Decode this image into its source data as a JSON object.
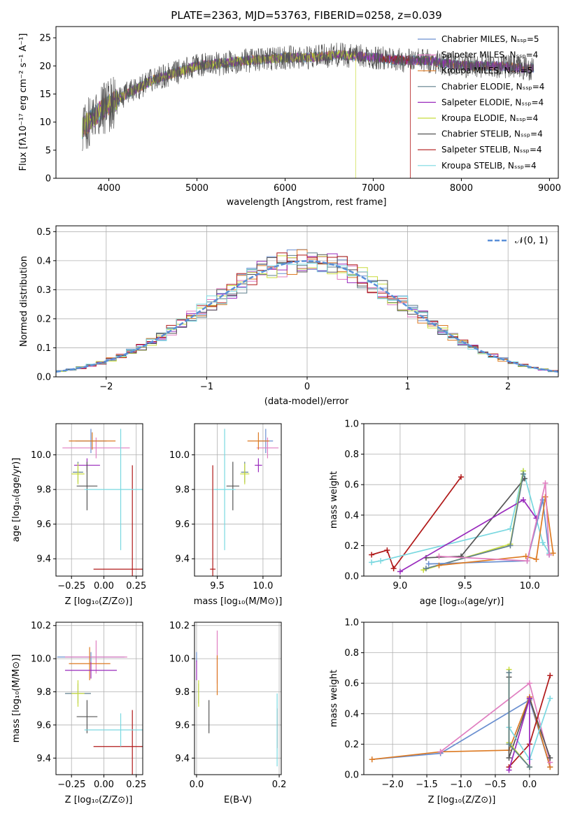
{
  "colors": {
    "chabrier_miles": "#6a8fd0",
    "salpeter_miles": "#e07ec0",
    "kroupa_miles": "#dd7a22",
    "chabrier_elodie": "#5f7f8c",
    "salpeter_elodie": "#9a2bbd",
    "kroupa_elodie": "#c8dc3c",
    "chabrier_stelib": "#555555",
    "salpeter_stelib": "#b01818",
    "kroupa_stelib": "#7ad8e0",
    "normal": "#5a8fd8",
    "grid": "#b0b0b0"
  },
  "panels": {
    "spectrum": {
      "title": "PLATE=2363, MJD=53763, FIBERID=0258, z=0.039",
      "xlabel": "wavelength [Angstrom, rest frame]",
      "ylabel": "Flux [fλ10⁻¹⁷ erg cm⁻² s⁻¹ A⁻¹]",
      "xticks": [
        "4000",
        "5000",
        "6000",
        "7000",
        "8000",
        "9000"
      ],
      "yticks": [
        "0",
        "5",
        "10",
        "15",
        "20",
        "25"
      ]
    },
    "residuals": {
      "xlabel": "(data-model)/error",
      "ylabel": "Normed distribution",
      "legend": "𝒩(0, 1)",
      "xticks": [
        "−2",
        "−1",
        "0",
        "1",
        "2"
      ],
      "yticks": [
        "0.0",
        "0.1",
        "0.2",
        "0.3",
        "0.4",
        "0.5"
      ]
    },
    "age_z": {
      "xlabel": "Z [log₁₀(Z/Z⊙)]",
      "ylabel": "age  [log₁₀(age/yr)]",
      "xticks": [
        "−0.25",
        "0.00",
        "0.25"
      ],
      "yticks": [
        "9.4",
        "9.6",
        "9.8",
        "10.0"
      ]
    },
    "age_mass": {
      "xlabel": "mass [log₁₀(M/M⊙)]",
      "xticks": [
        "9.5",
        "10.0"
      ],
      "yticks": [
        "9.4",
        "9.6",
        "9.8",
        "10.0"
      ]
    },
    "weight_age": {
      "xlabel": "age  [log₁₀(age/yr)]",
      "ylabel": "mass weight",
      "xticks": [
        "9.0",
        "9.5",
        "10.0"
      ],
      "yticks": [
        "0.0",
        "0.2",
        "0.4",
        "0.6",
        "0.8",
        "1.0"
      ]
    },
    "mass_z": {
      "xlabel": "Z [log₁₀(Z/Z⊙)]",
      "ylabel": "mass [log₁₀(M/M⊙)]",
      "xticks": [
        "−0.25",
        "0.00",
        "0.25"
      ],
      "yticks": [
        "9.4",
        "9.6",
        "9.8",
        "10.0",
        "10.2"
      ]
    },
    "mass_ebv": {
      "xlabel": "E(B-V)",
      "xticks": [
        "0.0",
        "0.2"
      ],
      "yticks": [
        "9.4",
        "9.6",
        "9.8",
        "10.0",
        "10.2"
      ]
    },
    "weight_z": {
      "xlabel": "Z [log₁₀(Z/Z⊙)]",
      "ylabel": "mass weight",
      "xticks": [
        "−2.0",
        "−1.5",
        "−1.0",
        "−0.5",
        "0.0"
      ],
      "yticks": [
        "0.0",
        "0.2",
        "0.4",
        "0.6",
        "0.8",
        "1.0"
      ]
    }
  },
  "chart_data": [
    {
      "type": "line",
      "title": "PLATE=2363, MJD=53763, FIBERID=0258, z=0.039",
      "xlabel": "wavelength [Angstrom, rest frame]",
      "ylabel": "Flux [fλ10⁻¹⁷ erg cm⁻² s⁻¹ A⁻¹]",
      "xlim": [
        3400,
        9100
      ],
      "ylim": [
        0,
        27
      ],
      "legend_position": "upper-right",
      "series": [
        {
          "name": "Chabrier MILES, Nₛₛₚ=5",
          "key": "chabrier_miles"
        },
        {
          "name": "Salpeter MILES, Nₛₛₚ=4",
          "key": "salpeter_miles"
        },
        {
          "name": "Kroupa MILES, Nₛₛₚ=5",
          "key": "kroupa_miles"
        },
        {
          "name": "Chabrier ELODIE, Nₛₛₚ=4",
          "key": "chabrier_elodie"
        },
        {
          "name": "Salpeter ELODIE, Nₛₛₚ=4",
          "key": "salpeter_elodie"
        },
        {
          "name": "Kroupa ELODIE, Nₛₛₚ=4",
          "key": "kroupa_elodie"
        },
        {
          "name": "Chabrier STELIB, Nₛₛₚ=4",
          "key": "chabrier_stelib"
        },
        {
          "name": "Salpeter STELIB, Nₛₛₚ=4",
          "key": "salpeter_stelib"
        },
        {
          "name": "Kroupa STELIB, Nₛₛₚ=4",
          "key": "kroupa_stelib"
        }
      ],
      "continuum": {
        "x": [
          3700,
          3900,
          4000,
          4200,
          4500,
          4800,
          5000,
          5300,
          5600,
          6000,
          6300,
          6600,
          7000,
          7300,
          7600,
          8000,
          8400,
          8800
        ],
        "y": [
          9,
          12,
          13,
          15,
          17.5,
          19,
          20,
          20.5,
          21,
          21.5,
          21.5,
          22,
          21.5,
          21,
          21,
          20,
          20,
          19.5
        ]
      }
    },
    {
      "type": "line",
      "xlabel": "(data-model)/error",
      "ylabel": "Normed distribution",
      "xlim": [
        -2.5,
        2.5
      ],
      "ylim": [
        0,
        0.52
      ],
      "legend": "𝒩(0, 1)",
      "legend_position": "upper-right",
      "grid": true
    },
    {
      "type": "scatter",
      "xlabel": "Z [log₁₀(Z/Z⊙)]",
      "ylabel": "age  [log₁₀(age/yr)]",
      "xlim": [
        -0.37,
        0.3
      ],
      "ylim": [
        9.3,
        10.18
      ],
      "grid": true,
      "points": [
        {
          "key": "chabrier_miles",
          "x": -0.1,
          "y": 10.08,
          "xerr": 0.12,
          "yerr": 0.07
        },
        {
          "key": "salpeter_miles",
          "x": -0.06,
          "y": 10.04,
          "xerr": 0.26,
          "yerr": 0.06
        },
        {
          "key": "kroupa_miles",
          "x": -0.09,
          "y": 10.08,
          "xerr": 0.18,
          "yerr": 0.05
        },
        {
          "key": "chabrier_elodie",
          "x": -0.2,
          "y": 9.9,
          "xerr": 0.04,
          "yerr": 0.06
        },
        {
          "key": "salpeter_elodie",
          "x": -0.13,
          "y": 9.94,
          "xerr": 0.1,
          "yerr": 0.04
        },
        {
          "key": "kroupa_elodie",
          "x": -0.2,
          "y": 9.89,
          "xerr": 0.05,
          "yerr": 0.06
        },
        {
          "key": "chabrier_stelib",
          "x": -0.13,
          "y": 9.82,
          "xerr": 0.08,
          "yerr": 0.14
        },
        {
          "key": "salpeter_stelib",
          "x": 0.22,
          "y": 9.34,
          "xerr": 0.3,
          "yerr": 0.6
        },
        {
          "key": "kroupa_stelib",
          "x": 0.13,
          "y": 9.8,
          "xerr": 0.28,
          "yerr": 0.35
        }
      ]
    },
    {
      "type": "scatter",
      "xlabel": "mass [log₁₀(M/M⊙)]",
      "xlim": [
        9.25,
        10.2
      ],
      "ylim": [
        9.3,
        10.18
      ],
      "grid": true,
      "points": [
        {
          "key": "chabrier_miles",
          "x": 10.03,
          "y": 10.08,
          "xerr": 0.08,
          "yerr": 0.07
        },
        {
          "key": "salpeter_miles",
          "x": 10.05,
          "y": 10.04,
          "xerr": 0.12,
          "yerr": 0.06
        },
        {
          "key": "kroupa_miles",
          "x": 9.95,
          "y": 10.08,
          "xerr": 0.12,
          "yerr": 0.05
        },
        {
          "key": "chabrier_elodie",
          "x": 9.8,
          "y": 9.9,
          "xerr": 0.04,
          "yerr": 0.06
        },
        {
          "key": "salpeter_elodie",
          "x": 9.95,
          "y": 9.94,
          "xerr": 0.04,
          "yerr": 0.04
        },
        {
          "key": "kroupa_elodie",
          "x": 9.8,
          "y": 9.89,
          "xerr": 0.05,
          "yerr": 0.06
        },
        {
          "key": "chabrier_stelib",
          "x": 9.67,
          "y": 9.82,
          "xerr": 0.07,
          "yerr": 0.14
        },
        {
          "key": "salpeter_stelib",
          "x": 9.45,
          "y": 9.34,
          "xerr": 0.03,
          "yerr": 0.6
        },
        {
          "key": "kroupa_stelib",
          "x": 9.58,
          "y": 9.8,
          "xerr": 0.12,
          "yerr": 0.35
        }
      ]
    },
    {
      "type": "line",
      "xlabel": "age  [log₁₀(age/yr)]",
      "ylabel": "mass weight",
      "xlim": [
        8.72,
        10.22
      ],
      "ylim": [
        0,
        1
      ],
      "grid": true
    },
    {
      "type": "scatter",
      "xlabel": "Z [log₁₀(Z/Z⊙)]",
      "ylabel": "mass [log₁₀(M/M⊙)]",
      "xlim": [
        -0.37,
        0.3
      ],
      "ylim": [
        9.3,
        10.22
      ],
      "grid": true,
      "points": [
        {
          "key": "chabrier_miles",
          "x": -0.1,
          "y": 10.01,
          "xerr": 0.26,
          "yerr": 0.03
        },
        {
          "key": "salpeter_miles",
          "x": -0.06,
          "y": 10.01,
          "xerr": 0.24,
          "yerr": 0.1
        },
        {
          "key": "kroupa_miles",
          "x": -0.11,
          "y": 9.97,
          "xerr": 0.16,
          "yerr": 0.1
        },
        {
          "key": "chabrier_elodie",
          "x": -0.2,
          "y": 9.79,
          "xerr": 0.1,
          "yerr": 0.06
        },
        {
          "key": "salpeter_elodie",
          "x": -0.1,
          "y": 9.93,
          "xerr": 0.2,
          "yerr": 0.05
        },
        {
          "key": "kroupa_elodie",
          "x": -0.2,
          "y": 9.79,
          "xerr": 0.05,
          "yerr": 0.08
        },
        {
          "key": "chabrier_stelib",
          "x": -0.13,
          "y": 9.65,
          "xerr": 0.08,
          "yerr": 0.1
        },
        {
          "key": "salpeter_stelib",
          "x": 0.22,
          "y": 9.47,
          "xerr": 0.3,
          "yerr": 0.22
        },
        {
          "key": "kroupa_stelib",
          "x": 0.13,
          "y": 9.57,
          "xerr": 0.28,
          "yerr": 0.1
        }
      ]
    },
    {
      "type": "scatter",
      "xlabel": "E(B-V)",
      "xlim": [
        -0.005,
        0.205
      ],
      "ylim": [
        9.3,
        10.22
      ],
      "grid": true,
      "points": [
        {
          "key": "chabrier_miles",
          "x": 0.0,
          "y": 10.01,
          "yerr": 0.03
        },
        {
          "key": "salpeter_miles",
          "x": 0.05,
          "y": 10.01,
          "yerr": 0.16
        },
        {
          "key": "kroupa_miles",
          "x": 0.05,
          "y": 9.9,
          "yerr": 0.12
        },
        {
          "key": "chabrier_elodie",
          "x": 0.005,
          "y": 9.79,
          "yerr": 0.06
        },
        {
          "key": "salpeter_elodie",
          "x": 0.0,
          "y": 9.93,
          "yerr": 0.06
        },
        {
          "key": "kroupa_elodie",
          "x": 0.005,
          "y": 9.79,
          "yerr": 0.08
        },
        {
          "key": "chabrier_stelib",
          "x": 0.03,
          "y": 9.65,
          "yerr": 0.1
        },
        {
          "key": "salpeter_stelib",
          "x": 0.195,
          "y": 9.58,
          "yerr": 0.12
        },
        {
          "key": "kroupa_stelib",
          "x": 0.195,
          "y": 9.57,
          "yerr": 0.22
        }
      ]
    },
    {
      "type": "line",
      "xlabel": "Z [log₁₀(Z/Z⊙)]",
      "ylabel": "mass weight",
      "xlim": [
        -2.42,
        0.42
      ],
      "ylim": [
        0,
        1
      ],
      "grid": true
    }
  ]
}
